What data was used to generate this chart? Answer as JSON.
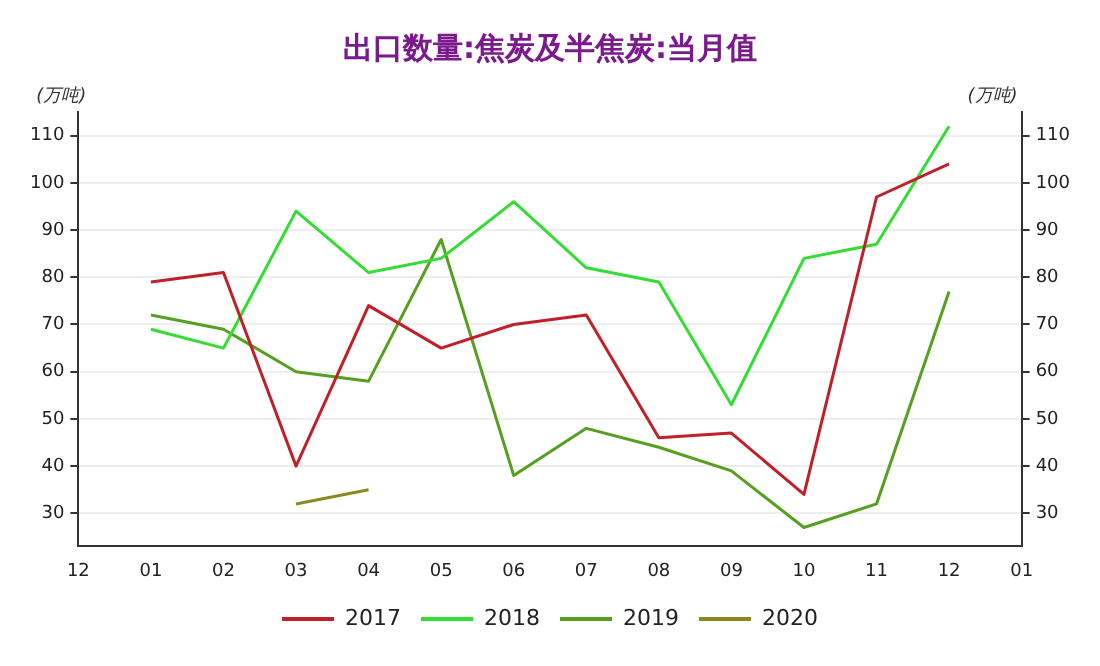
{
  "chart_data": {
    "type": "line",
    "title": "出口数量:焦炭及半焦炭:当月值",
    "ylabel": "(万吨)",
    "y2label": "(万吨)",
    "categories": [
      "12",
      "01",
      "02",
      "03",
      "04",
      "05",
      "06",
      "07",
      "08",
      "09",
      "10",
      "11",
      "12",
      "01"
    ],
    "series": [
      {
        "name": "2017",
        "color": "#c0202a",
        "values": [
          null,
          79,
          81,
          40,
          74,
          65,
          70,
          72,
          46,
          47,
          34,
          97,
          104,
          null
        ]
      },
      {
        "name": "2018",
        "color": "#33dd33",
        "values": [
          null,
          69,
          65,
          94,
          81,
          84,
          96,
          82,
          79,
          53,
          84,
          87,
          112,
          null
        ]
      },
      {
        "name": "2019",
        "color": "#55a020",
        "values": [
          null,
          72,
          69,
          60,
          58,
          88,
          38,
          48,
          44,
          39,
          27,
          32,
          77,
          null
        ]
      },
      {
        "name": "2020",
        "color": "#8a8a20",
        "values": [
          null,
          null,
          null,
          32,
          35,
          null,
          null,
          null,
          null,
          null,
          null,
          null,
          null,
          null
        ]
      }
    ],
    "ylim": [
      23,
      115
    ],
    "yticks": [
      30,
      40,
      50,
      60,
      70,
      80,
      90,
      100,
      110
    ],
    "y2lim": [
      23,
      115
    ],
    "y2ticks": [
      30,
      40,
      50,
      60,
      70,
      80,
      90,
      100,
      110
    ],
    "grid": "y",
    "legend": "bottom",
    "marker": "none",
    "line_style": "solid"
  }
}
